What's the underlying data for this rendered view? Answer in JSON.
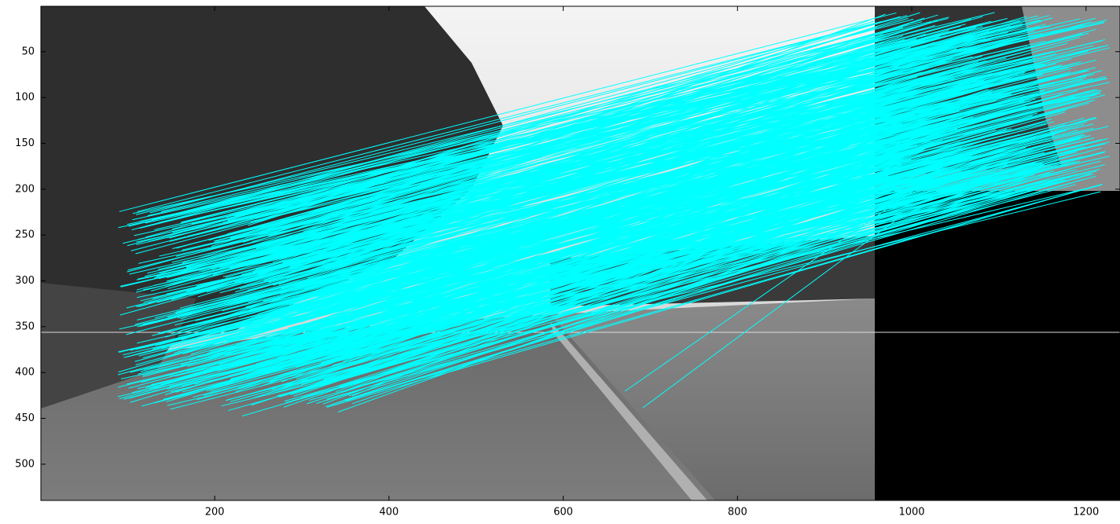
{
  "chart_data": {
    "type": "image",
    "xlim": [
      0.5,
      1239
    ],
    "ylim": [
      0.5,
      539.5
    ],
    "xticks": [
      200,
      400,
      600,
      800,
      1000,
      1200
    ],
    "yticks": [
      50,
      100,
      150,
      200,
      250,
      300,
      350,
      400,
      450,
      500
    ],
    "y_reversed": true,
    "line_color": "#00ffff"
  }
}
